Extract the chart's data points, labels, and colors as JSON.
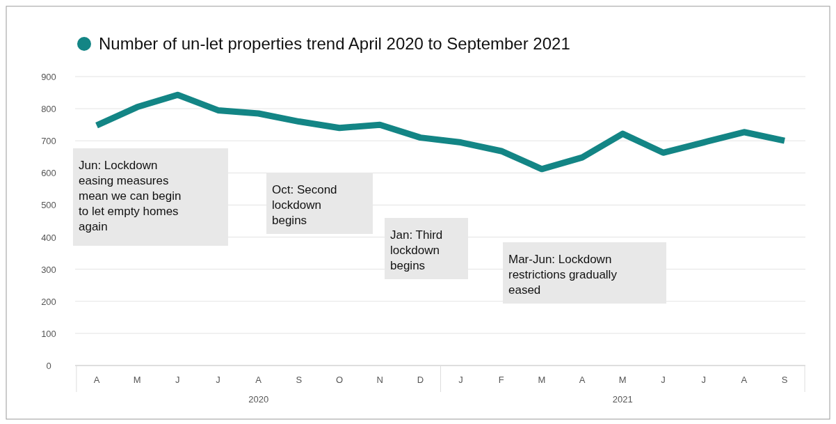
{
  "chart_data": {
    "type": "line",
    "title": "Number of un-let properties trend April 2020 to September 2021",
    "categories": [
      "A",
      "M",
      "J",
      "J",
      "A",
      "S",
      "O",
      "N",
      "D",
      "J",
      "F",
      "M",
      "A",
      "M",
      "J",
      "J",
      "A",
      "S"
    ],
    "series": [
      {
        "color": "#138585",
        "values": [
          748,
          805,
          843,
          795,
          785,
          760,
          740,
          750,
          710,
          695,
          668,
          612,
          648,
          722,
          663,
          695,
          727,
          700
        ]
      }
    ],
    "ylim": [
      0,
      900
    ],
    "yticks": [
      0,
      100,
      200,
      300,
      400,
      500,
      600,
      700,
      800,
      900
    ],
    "grid": "y",
    "marker": "none",
    "line_style": "solid",
    "annotations": [
      "Jun: Lockdown easing measures mean we can begin to let empty homes again",
      "Oct: Second lockdown begins",
      "Jan: Third lockdown begins",
      "Mar-Jun: Lockdown restrictions gradually eased",
      "2020",
      "2021"
    ]
  }
}
